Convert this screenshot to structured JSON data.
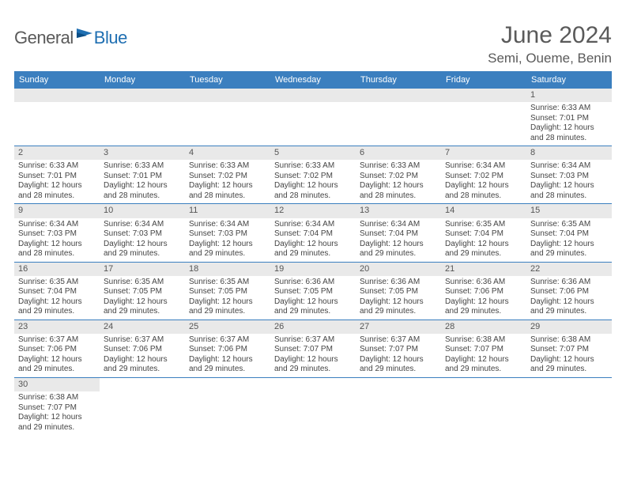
{
  "logo": {
    "general": "General",
    "blue": "Blue"
  },
  "title": "June 2024",
  "location": "Semi, Oueme, Benin",
  "colors": {
    "header_bg": "#3b7fbf",
    "header_text": "#ffffff",
    "daynum_bg": "#e9e9e9",
    "text": "#444444",
    "border": "#3b7fbf"
  },
  "weekdays": [
    "Sunday",
    "Monday",
    "Tuesday",
    "Wednesday",
    "Thursday",
    "Friday",
    "Saturday"
  ],
  "weeks": [
    [
      null,
      null,
      null,
      null,
      null,
      null,
      {
        "n": "1",
        "sr": "6:33 AM",
        "ss": "7:01 PM",
        "dlh": "12",
        "dlm": "28"
      }
    ],
    [
      {
        "n": "2",
        "sr": "6:33 AM",
        "ss": "7:01 PM",
        "dlh": "12",
        "dlm": "28"
      },
      {
        "n": "3",
        "sr": "6:33 AM",
        "ss": "7:01 PM",
        "dlh": "12",
        "dlm": "28"
      },
      {
        "n": "4",
        "sr": "6:33 AM",
        "ss": "7:02 PM",
        "dlh": "12",
        "dlm": "28"
      },
      {
        "n": "5",
        "sr": "6:33 AM",
        "ss": "7:02 PM",
        "dlh": "12",
        "dlm": "28"
      },
      {
        "n": "6",
        "sr": "6:33 AM",
        "ss": "7:02 PM",
        "dlh": "12",
        "dlm": "28"
      },
      {
        "n": "7",
        "sr": "6:34 AM",
        "ss": "7:02 PM",
        "dlh": "12",
        "dlm": "28"
      },
      {
        "n": "8",
        "sr": "6:34 AM",
        "ss": "7:03 PM",
        "dlh": "12",
        "dlm": "28"
      }
    ],
    [
      {
        "n": "9",
        "sr": "6:34 AM",
        "ss": "7:03 PM",
        "dlh": "12",
        "dlm": "28"
      },
      {
        "n": "10",
        "sr": "6:34 AM",
        "ss": "7:03 PM",
        "dlh": "12",
        "dlm": "29"
      },
      {
        "n": "11",
        "sr": "6:34 AM",
        "ss": "7:03 PM",
        "dlh": "12",
        "dlm": "29"
      },
      {
        "n": "12",
        "sr": "6:34 AM",
        "ss": "7:04 PM",
        "dlh": "12",
        "dlm": "29"
      },
      {
        "n": "13",
        "sr": "6:34 AM",
        "ss": "7:04 PM",
        "dlh": "12",
        "dlm": "29"
      },
      {
        "n": "14",
        "sr": "6:35 AM",
        "ss": "7:04 PM",
        "dlh": "12",
        "dlm": "29"
      },
      {
        "n": "15",
        "sr": "6:35 AM",
        "ss": "7:04 PM",
        "dlh": "12",
        "dlm": "29"
      }
    ],
    [
      {
        "n": "16",
        "sr": "6:35 AM",
        "ss": "7:04 PM",
        "dlh": "12",
        "dlm": "29"
      },
      {
        "n": "17",
        "sr": "6:35 AM",
        "ss": "7:05 PM",
        "dlh": "12",
        "dlm": "29"
      },
      {
        "n": "18",
        "sr": "6:35 AM",
        "ss": "7:05 PM",
        "dlh": "12",
        "dlm": "29"
      },
      {
        "n": "19",
        "sr": "6:36 AM",
        "ss": "7:05 PM",
        "dlh": "12",
        "dlm": "29"
      },
      {
        "n": "20",
        "sr": "6:36 AM",
        "ss": "7:05 PM",
        "dlh": "12",
        "dlm": "29"
      },
      {
        "n": "21",
        "sr": "6:36 AM",
        "ss": "7:06 PM",
        "dlh": "12",
        "dlm": "29"
      },
      {
        "n": "22",
        "sr": "6:36 AM",
        "ss": "7:06 PM",
        "dlh": "12",
        "dlm": "29"
      }
    ],
    [
      {
        "n": "23",
        "sr": "6:37 AM",
        "ss": "7:06 PM",
        "dlh": "12",
        "dlm": "29"
      },
      {
        "n": "24",
        "sr": "6:37 AM",
        "ss": "7:06 PM",
        "dlh": "12",
        "dlm": "29"
      },
      {
        "n": "25",
        "sr": "6:37 AM",
        "ss": "7:06 PM",
        "dlh": "12",
        "dlm": "29"
      },
      {
        "n": "26",
        "sr": "6:37 AM",
        "ss": "7:07 PM",
        "dlh": "12",
        "dlm": "29"
      },
      {
        "n": "27",
        "sr": "6:37 AM",
        "ss": "7:07 PM",
        "dlh": "12",
        "dlm": "29"
      },
      {
        "n": "28",
        "sr": "6:38 AM",
        "ss": "7:07 PM",
        "dlh": "12",
        "dlm": "29"
      },
      {
        "n": "29",
        "sr": "6:38 AM",
        "ss": "7:07 PM",
        "dlh": "12",
        "dlm": "29"
      }
    ],
    [
      {
        "n": "30",
        "sr": "6:38 AM",
        "ss": "7:07 PM",
        "dlh": "12",
        "dlm": "29"
      },
      null,
      null,
      null,
      null,
      null,
      null
    ]
  ],
  "labels": {
    "sunrise": "Sunrise:",
    "sunset": "Sunset:",
    "daylight": "Daylight:",
    "hours": "hours",
    "and": "and",
    "minutes": "minutes."
  }
}
